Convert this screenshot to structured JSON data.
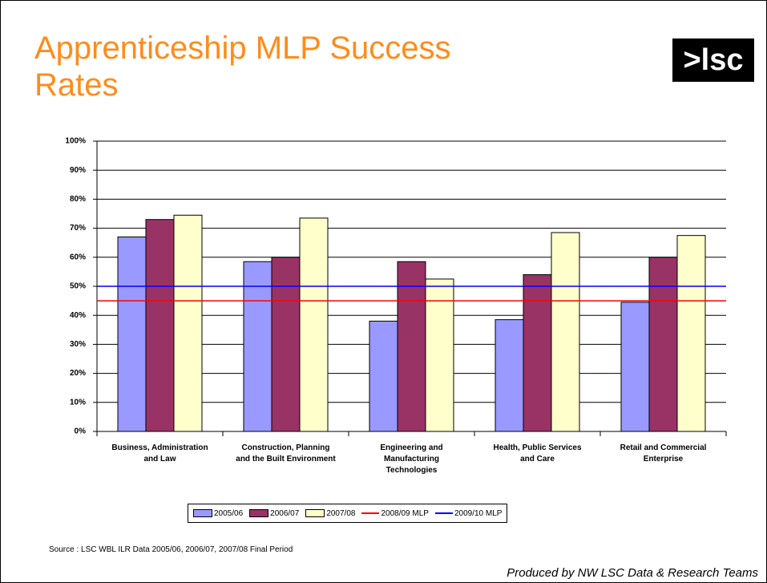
{
  "title": "Apprenticeship MLP Success Rates",
  "logo": ">lsc",
  "source": "Source : LSC WBL ILR Data 2005/06, 2006/07, 2007/08 Final Period",
  "footer": "Produced by NW LSC Data & Research Teams",
  "chart_data": {
    "type": "bar",
    "categories": [
      "Business, Administration and Law",
      "Construction, Planning and the Built Environment",
      "Engineering and Manufacturing Technologies",
      "Health, Public Services and Care",
      "Retail and Commercial Enterprise"
    ],
    "series": [
      {
        "name": "2005/06",
        "color": "#9999ff",
        "values": [
          67,
          58.5,
          38,
          38.5,
          44.5
        ]
      },
      {
        "name": "2006/07",
        "color": "#993366",
        "values": [
          73,
          60,
          58.5,
          54,
          60
        ]
      },
      {
        "name": "2007/08",
        "color": "#ffffcc",
        "values": [
          74.5,
          73.5,
          52.5,
          68.5,
          67.5
        ]
      }
    ],
    "reference_lines": [
      {
        "name": "2008/09 MLP",
        "color": "#ff0000",
        "value": 45
      },
      {
        "name": "2009/10 MLP",
        "color": "#0000ff",
        "value": 50
      }
    ],
    "ylim": [
      0,
      100
    ],
    "yticks": [
      {
        "value": 0,
        "label": "0%"
      },
      {
        "value": 10,
        "label": "10%"
      },
      {
        "value": 20,
        "label": "20%"
      },
      {
        "value": 30,
        "label": "30%"
      },
      {
        "value": 40,
        "label": "40%"
      },
      {
        "value": 50,
        "label": "50%"
      },
      {
        "value": 60,
        "label": "60%"
      },
      {
        "value": 70,
        "label": "70%"
      },
      {
        "value": 80,
        "label": "80%"
      },
      {
        "value": 90,
        "label": "90%"
      },
      {
        "value": 100,
        "label": "100%"
      }
    ],
    "grid": true
  }
}
